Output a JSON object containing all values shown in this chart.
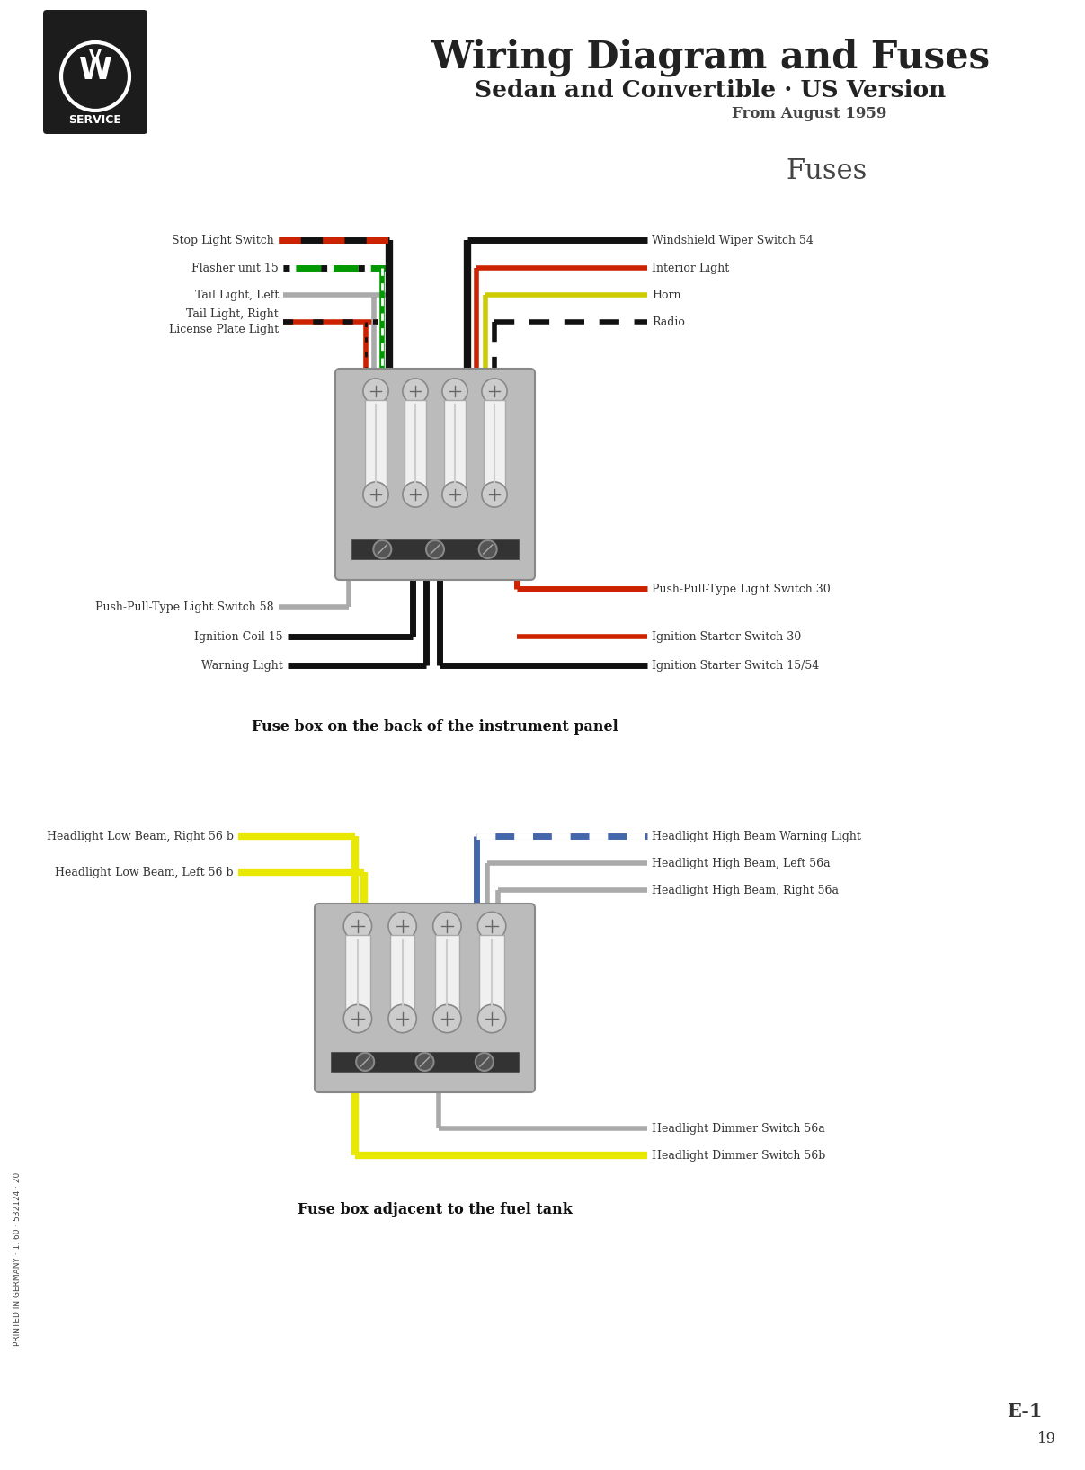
{
  "title1": "Wiring Diagram and Fuses",
  "title2": "Sedan and Convertible · US Version",
  "title3": "From August 1959",
  "fuses_label": "Fuses",
  "bg_color": "#ffffff",
  "diagram1_caption": "Fuse box on the back of the instrument panel",
  "diagram2_caption": "Fuse box adjacent to the fuel tank",
  "page_number": "19",
  "page_label": "E-1",
  "print_text": "PRINTED IN GERMANY · 1. 60 · 532124 · 20",
  "label_fontsize": 9.0,
  "label_color": "#333333",
  "title_color": "#222222"
}
